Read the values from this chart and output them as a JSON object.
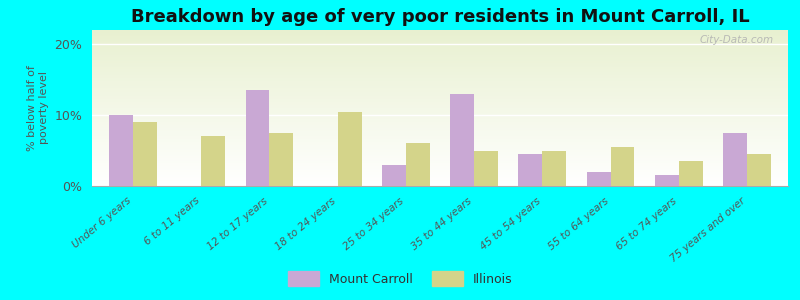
{
  "title": "Breakdown by age of very poor residents in Mount Carroll, IL",
  "ylabel": "% below half of\npoverty level",
  "categories": [
    "Under 6 years",
    "6 to 11 years",
    "12 to 17 years",
    "18 to 24 years",
    "25 to 34 years",
    "35 to 44 years",
    "45 to 54 years",
    "55 to 64 years",
    "65 to 74 years",
    "75 years and over"
  ],
  "mount_carroll": [
    10.0,
    0,
    13.5,
    0,
    3.0,
    13.0,
    4.5,
    2.0,
    1.5,
    7.5
  ],
  "illinois": [
    9.0,
    7.0,
    7.5,
    10.5,
    6.0,
    5.0,
    5.0,
    5.5,
    3.5,
    4.5
  ],
  "bar_color_mc": "#c9a8d4",
  "bar_color_il": "#d4d48a",
  "background_color": "#00ffff",
  "plot_bg_top": "#e8f0d0",
  "plot_bg_bottom": "#ffffff",
  "ylim": [
    0,
    22
  ],
  "yticks": [
    0,
    10,
    20
  ],
  "ytick_labels": [
    "0%",
    "10%",
    "20%"
  ],
  "bar_width": 0.35,
  "title_fontsize": 13,
  "legend_labels": [
    "Mount Carroll",
    "Illinois"
  ],
  "watermark": "City-Data.com"
}
